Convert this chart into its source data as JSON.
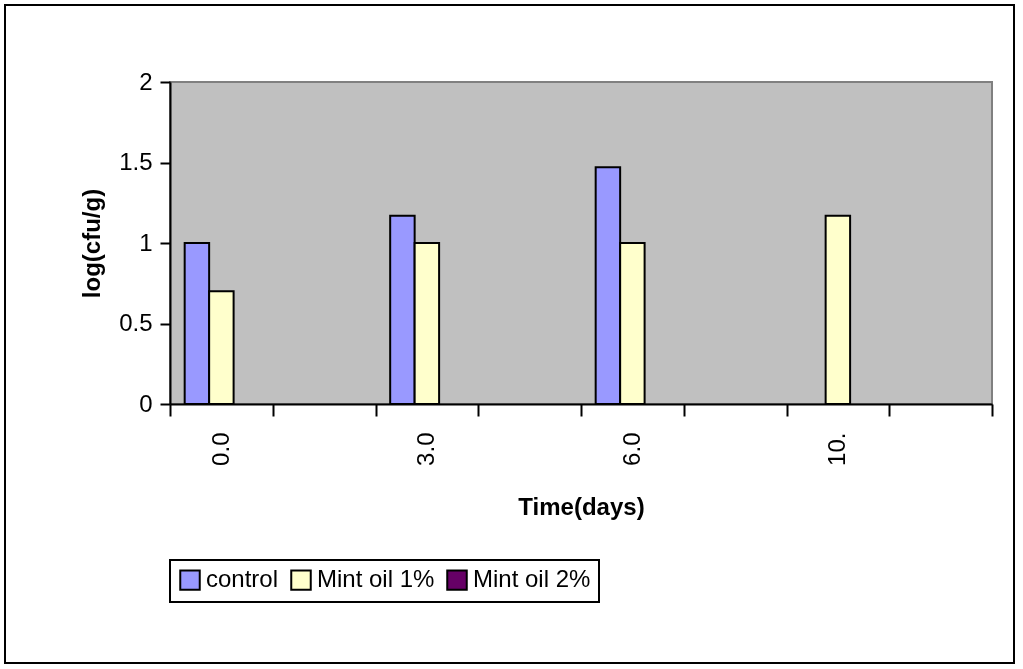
{
  "chart_data": {
    "type": "bar",
    "xlabel": "Time(days)",
    "ylabel": "log(cfu/g)",
    "categories": [
      "0.0",
      null,
      "3.0",
      null,
      "6.0",
      null,
      "10.",
      null
    ],
    "series": [
      {
        "name": "control",
        "color": "#9999ff",
        "values": [
          1.0,
          null,
          1.17,
          null,
          1.47,
          null,
          null,
          null
        ]
      },
      {
        "name": "Mint oil 1%",
        "color": "#ffffcc",
        "values": [
          0.7,
          null,
          1.0,
          null,
          1.0,
          null,
          1.17,
          null
        ]
      },
      {
        "name": "Mint oil 2%",
        "color": "#660066",
        "values": [
          null,
          null,
          null,
          null,
          null,
          null,
          null,
          null
        ]
      }
    ],
    "ylim": [
      0,
      2
    ],
    "yticks": [
      0,
      0.5,
      1,
      1.5,
      2
    ],
    "grid": false,
    "legend": "bottom"
  }
}
